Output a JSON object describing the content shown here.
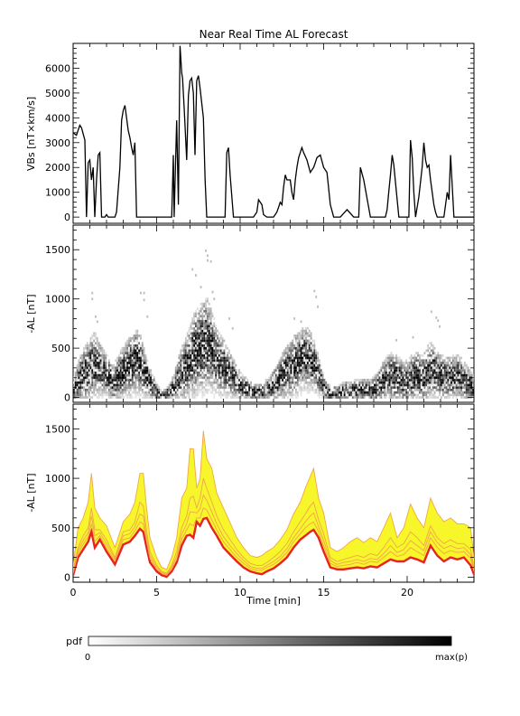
{
  "chart_data": [
    {
      "type": "line",
      "title": "Near Real Time AL Forecast",
      "ylabel": "VBs [nT×km/s]",
      "xlim": [
        0,
        24
      ],
      "ylim": [
        -250,
        7000
      ],
      "yticks": [
        0,
        1000,
        2000,
        3000,
        4000,
        5000,
        6000
      ],
      "x": [
        0.0,
        0.2,
        0.4,
        0.5,
        0.7,
        0.8,
        0.9,
        1.0,
        1.1,
        1.2,
        1.3,
        1.4,
        1.5,
        1.6,
        1.7,
        1.75,
        1.9,
        2.0,
        2.1,
        2.3,
        2.5,
        2.6,
        2.8,
        2.9,
        3.0,
        3.1,
        3.2,
        3.3,
        3.4,
        3.5,
        3.6,
        3.7,
        3.8,
        4.0,
        4.1,
        4.2,
        4.4,
        4.6,
        4.8,
        5.0,
        5.2,
        5.6,
        5.9,
        6.0,
        6.05,
        6.2,
        6.3,
        6.4,
        6.5,
        6.55,
        6.65,
        6.8,
        6.9,
        7.0,
        7.1,
        7.2,
        7.3,
        7.4,
        7.5,
        7.6,
        7.8,
        7.9,
        8.0,
        8.1,
        8.2,
        8.3,
        8.4,
        8.5,
        8.8,
        9.0,
        9.1,
        9.2,
        9.3,
        9.4,
        9.6,
        10.0,
        10.4,
        10.6,
        10.8,
        11.0,
        11.1,
        11.3,
        11.4,
        11.6,
        11.8,
        12.0,
        12.2,
        12.3,
        12.4,
        12.5,
        12.6,
        12.7,
        12.8,
        13.0,
        13.1,
        13.2,
        13.3,
        13.4,
        13.5,
        13.6,
        13.7,
        13.8,
        14.0,
        14.2,
        14.4,
        14.5,
        14.6,
        14.8,
        15.0,
        15.2,
        15.4,
        15.6,
        15.8,
        16.0,
        16.4,
        16.8,
        17.0,
        17.1,
        17.2,
        17.4,
        17.8,
        18.4,
        18.6,
        18.7,
        18.8,
        18.9,
        19.0,
        19.1,
        19.2,
        19.5,
        19.8,
        19.9,
        20.0,
        20.1,
        20.2,
        20.3,
        20.4,
        20.5,
        20.7,
        20.9,
        21.0,
        21.1,
        21.2,
        21.3,
        21.4,
        21.6,
        21.7,
        21.8,
        22.0,
        22.2,
        22.4,
        22.5,
        22.6,
        22.8,
        23.2,
        24.0
      ],
      "y": [
        3400,
        3300,
        3700,
        3600,
        3100,
        0,
        2200,
        2300,
        1500,
        2000,
        0,
        1500,
        2500,
        2600,
        0,
        0,
        0,
        100,
        0,
        0,
        0,
        200,
        2000,
        3900,
        4300,
        4500,
        4000,
        3500,
        3200,
        2800,
        2500,
        3000,
        0,
        0,
        0,
        0,
        0,
        0,
        0,
        0,
        0,
        0,
        0,
        2500,
        0,
        3900,
        500,
        6900,
        5800,
        5600,
        4400,
        2300,
        4900,
        5500,
        5600,
        5000,
        2500,
        5500,
        5700,
        5200,
        4000,
        1500,
        0,
        0,
        0,
        0,
        0,
        0,
        0,
        0,
        0,
        2600,
        2800,
        1700,
        0,
        0,
        0,
        0,
        0,
        200,
        700,
        500,
        100,
        0,
        0,
        0,
        200,
        400,
        600,
        500,
        1200,
        1700,
        1500,
        1500,
        1000,
        700,
        1500,
        2000,
        2400,
        2600,
        2800,
        2600,
        2300,
        1800,
        2000,
        2200,
        2400,
        2500,
        2000,
        1800,
        500,
        0,
        0,
        0,
        300,
        0,
        0,
        0,
        2000,
        1500,
        0,
        0,
        0,
        0,
        300,
        1000,
        1700,
        2500,
        2100,
        0,
        0,
        0,
        0,
        0,
        3100,
        2400,
        1000,
        0,
        800,
        2000,
        3000,
        2300,
        2000,
        2100,
        1500,
        500,
        200,
        0,
        0,
        0,
        1000,
        700,
        2500,
        0,
        0,
        0
      ]
    },
    {
      "type": "heatmap",
      "ylabel": "-AL [nT]",
      "xlim": [
        0,
        24
      ],
      "ylim": [
        -50,
        1750
      ],
      "yticks": [
        0,
        500,
        1000,
        1500
      ],
      "x": [
        0.0,
        0.5,
        1.0,
        1.3,
        1.6,
        2.0,
        2.4,
        2.8,
        3.2,
        3.5,
        3.8,
        4.0,
        4.3,
        4.6,
        5.0,
        5.3,
        5.6,
        6.0,
        6.4,
        6.8,
        7.2,
        7.6,
        8.0,
        8.3,
        8.6,
        9.0,
        9.4,
        9.8,
        10.2,
        10.6,
        11.0,
        11.4,
        11.8,
        12.2,
        12.6,
        13.0,
        13.4,
        13.8,
        14.2,
        14.5,
        14.8,
        15.1,
        15.4,
        15.8,
        16.2,
        16.6,
        17.0,
        17.4,
        17.8,
        18.2,
        18.6,
        19.0,
        19.4,
        19.8,
        20.2,
        20.6,
        21.0,
        21.4,
        21.8,
        22.2,
        22.6,
        23.0,
        23.4,
        23.8,
        24.0
      ],
      "center": [
        60,
        220,
        300,
        350,
        300,
        240,
        150,
        220,
        300,
        340,
        390,
        360,
        260,
        150,
        60,
        20,
        30,
        100,
        220,
        320,
        440,
        520,
        560,
        500,
        380,
        320,
        240,
        170,
        110,
        70,
        50,
        60,
        100,
        160,
        240,
        300,
        360,
        420,
        400,
        320,
        200,
        80,
        40,
        40,
        60,
        70,
        70,
        80,
        70,
        100,
        180,
        220,
        200,
        150,
        200,
        220,
        200,
        300,
        240,
        200,
        200,
        220,
        180,
        120,
        100
      ],
      "spread": [
        120,
        250,
        300,
        320,
        260,
        200,
        180,
        240,
        280,
        300,
        320,
        300,
        240,
        150,
        80,
        50,
        60,
        120,
        240,
        320,
        400,
        440,
        460,
        400,
        320,
        280,
        220,
        160,
        120,
        90,
        80,
        90,
        120,
        180,
        240,
        280,
        300,
        300,
        290,
        240,
        160,
        100,
        80,
        80,
        100,
        100,
        110,
        110,
        120,
        150,
        200,
        240,
        240,
        200,
        220,
        240,
        240,
        280,
        240,
        220,
        220,
        220,
        200,
        160,
        140
      ],
      "outliers": [
        {
          "x": 1.1,
          "y": 1060
        },
        {
          "x": 1.1,
          "y": 1000
        },
        {
          "x": 1.3,
          "y": 820
        },
        {
          "x": 1.4,
          "y": 770
        },
        {
          "x": 4.0,
          "y": 1060
        },
        {
          "x": 4.2,
          "y": 1060
        },
        {
          "x": 4.2,
          "y": 990
        },
        {
          "x": 4.4,
          "y": 820
        },
        {
          "x": 7.1,
          "y": 1300
        },
        {
          "x": 7.3,
          "y": 1240
        },
        {
          "x": 7.6,
          "y": 1120
        },
        {
          "x": 7.9,
          "y": 1490
        },
        {
          "x": 8.0,
          "y": 1440
        },
        {
          "x": 8.0,
          "y": 1390
        },
        {
          "x": 8.2,
          "y": 1380
        },
        {
          "x": 8.3,
          "y": 1070
        },
        {
          "x": 8.4,
          "y": 1000
        },
        {
          "x": 9.3,
          "y": 800
        },
        {
          "x": 9.5,
          "y": 700
        },
        {
          "x": 13.2,
          "y": 800
        },
        {
          "x": 13.6,
          "y": 770
        },
        {
          "x": 14.4,
          "y": 1080
        },
        {
          "x": 14.5,
          "y": 1020
        },
        {
          "x": 14.6,
          "y": 920
        },
        {
          "x": 19.3,
          "y": 580
        },
        {
          "x": 20.3,
          "y": 610
        },
        {
          "x": 21.4,
          "y": 870
        },
        {
          "x": 21.7,
          "y": 810
        },
        {
          "x": 21.8,
          "y": 780
        },
        {
          "x": 21.9,
          "y": 720
        }
      ]
    },
    {
      "type": "area",
      "ylabel": "-AL [nT]",
      "xlabel": "Time [min]",
      "xlim": [
        0,
        24
      ],
      "xticks": [
        0,
        5,
        10,
        15,
        20
      ],
      "ylim": [
        -50,
        1750
      ],
      "yticks": [
        0,
        500,
        1000,
        1500
      ],
      "x": [
        0.0,
        0.3,
        0.6,
        0.9,
        1.1,
        1.3,
        1.6,
        2.0,
        2.5,
        3.0,
        3.4,
        3.7,
        4.0,
        4.2,
        4.4,
        4.6,
        5.0,
        5.3,
        5.6,
        5.9,
        6.2,
        6.5,
        6.8,
        7.0,
        7.2,
        7.4,
        7.6,
        7.8,
        8.0,
        8.3,
        8.6,
        9.0,
        9.4,
        9.8,
        10.2,
        10.6,
        11.0,
        11.3,
        11.6,
        12.0,
        12.4,
        12.8,
        13.2,
        13.6,
        13.9,
        14.2,
        14.4,
        14.7,
        15.0,
        15.4,
        15.8,
        16.2,
        16.6,
        17.0,
        17.4,
        17.8,
        18.2,
        18.6,
        19.0,
        19.4,
        19.8,
        20.2,
        20.6,
        21.0,
        21.4,
        21.8,
        22.2,
        22.6,
        23.0,
        23.4,
        23.8,
        24.0
      ],
      "series": [
        {
          "values": [
            20,
            200,
            280,
            360,
            460,
            300,
            380,
            260,
            130,
            330,
            360,
            420,
            490,
            460,
            300,
            150,
            60,
            20,
            5,
            60,
            150,
            320,
            420,
            430,
            400,
            560,
            520,
            590,
            600,
            500,
            420,
            300,
            230,
            160,
            100,
            60,
            40,
            30,
            60,
            90,
            140,
            200,
            300,
            380,
            420,
            460,
            480,
            400,
            260,
            100,
            80,
            80,
            90,
            100,
            90,
            110,
            100,
            140,
            180,
            160,
            160,
            200,
            180,
            150,
            320,
            220,
            160,
            200,
            180,
            200,
            120,
            30
          ]
        },
        {
          "values": [
            120,
            500,
            600,
            760,
            1050,
            700,
            600,
            520,
            300,
            560,
            640,
            760,
            1050,
            1050,
            700,
            400,
            200,
            100,
            80,
            200,
            400,
            800,
            900,
            1300,
            1300,
            900,
            1000,
            1480,
            1200,
            1100,
            850,
            700,
            550,
            400,
            300,
            220,
            200,
            220,
            260,
            300,
            380,
            480,
            640,
            760,
            900,
            1020,
            1100,
            800,
            650,
            300,
            260,
            300,
            360,
            400,
            350,
            400,
            360,
            500,
            650,
            400,
            500,
            740,
            600,
            500,
            800,
            650,
            560,
            600,
            540,
            540,
            500,
            200
          ]
        },
        {
          "values": [
            80,
            300,
            420,
            500,
            700,
            480,
            480,
            380,
            200,
            460,
            480,
            560,
            760,
            720,
            460,
            260,
            120,
            60,
            40,
            120,
            260,
            500,
            620,
            800,
            820,
            700,
            800,
            1000,
            900,
            760,
            620,
            480,
            380,
            280,
            200,
            140,
            120,
            120,
            150,
            200,
            260,
            340,
            460,
            560,
            640,
            720,
            760,
            580,
            440,
            200,
            160,
            180,
            200,
            220,
            200,
            240,
            220,
            300,
            400,
            300,
            340,
            460,
            400,
            320,
            520,
            400,
            340,
            380,
            340,
            340,
            280,
            100
          ]
        },
        {
          "values": [
            40,
            240,
            330,
            410,
            540,
            360,
            420,
            300,
            160,
            380,
            400,
            470,
            560,
            540,
            360,
            190,
            80,
            40,
            20,
            80,
            180,
            380,
            480,
            540,
            520,
            600,
            600,
            700,
            680,
            580,
            480,
            360,
            280,
            200,
            140,
            90,
            70,
            70,
            100,
            130,
            180,
            250,
            360,
            440,
            500,
            540,
            560,
            460,
            320,
            140,
            110,
            120,
            130,
            150,
            130,
            160,
            150,
            200,
            260,
            210,
            230,
            300,
            260,
            220,
            400,
            300,
            240,
            270,
            250,
            260,
            190,
            60
          ]
        },
        {
          "values": [
            60,
            270,
            370,
            450,
            620,
            420,
            450,
            340,
            180,
            420,
            440,
            510,
            640,
            620,
            410,
            220,
            100,
            50,
            30,
            100,
            210,
            430,
            540,
            660,
            660,
            650,
            690,
            830,
            780,
            660,
            540,
            410,
            320,
            240,
            170,
            110,
            90,
            90,
            120,
            160,
            210,
            290,
            400,
            490,
            560,
            620,
            650,
            510,
            370,
            170,
            130,
            150,
            160,
            180,
            160,
            190,
            180,
            240,
            320,
            250,
            280,
            370,
            320,
            270,
            460,
            350,
            290,
            320,
            290,
            300,
            230,
            80
          ]
        }
      ]
    }
  ],
  "colorbar": {
    "label": "pdf",
    "min_label": "0",
    "max_label": "max(p)"
  },
  "colors": {
    "bin": "#000000",
    "band_fill": "#f6f62b",
    "band_edge": "#f0a64a",
    "median": "#e8231f"
  }
}
